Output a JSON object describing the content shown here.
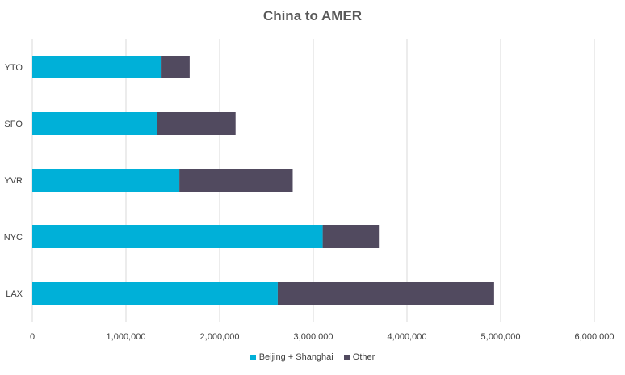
{
  "chart_data": {
    "type": "bar",
    "orientation": "horizontal",
    "stacked": true,
    "title": "China to AMER",
    "categories": [
      "YTO",
      "SFO",
      "YVR",
      "NYC",
      "LAX"
    ],
    "series": [
      {
        "name": "Beijing + Shanghai",
        "color": "#00B0D8",
        "values": [
          1380000,
          1330000,
          1570000,
          3100000,
          2620000
        ]
      },
      {
        "name": "Other",
        "color": "#514A5F",
        "values": [
          300000,
          840000,
          1210000,
          600000,
          2310000
        ]
      }
    ],
    "xlim": [
      0,
      6000000
    ],
    "xticks": [
      0,
      1000000,
      2000000,
      3000000,
      4000000,
      5000000,
      6000000
    ],
    "xtick_labels": [
      "0",
      "1,000,000",
      "2,000,000",
      "3,000,000",
      "4,000,000",
      "5,000,000",
      "6,000,000"
    ],
    "grid": true,
    "legend_position": "bottom"
  }
}
